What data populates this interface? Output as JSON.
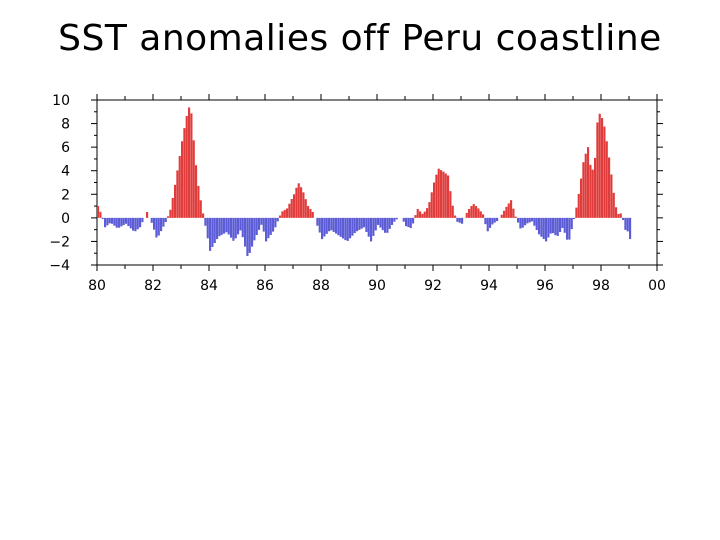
{
  "title": "SST anomalies off Peru coastline",
  "chart_data": {
    "type": "bar",
    "title": "",
    "xlabel": "",
    "ylabel": "",
    "xlim": [
      1980,
      2000
    ],
    "ylim": [
      -4,
      10
    ],
    "x_ticks": [
      {
        "value": 1980,
        "label": "80"
      },
      {
        "value": 1982,
        "label": "82"
      },
      {
        "value": 1984,
        "label": "84"
      },
      {
        "value": 1986,
        "label": "86"
      },
      {
        "value": 1988,
        "label": "88"
      },
      {
        "value": 1990,
        "label": "90"
      },
      {
        "value": 1992,
        "label": "92"
      },
      {
        "value": 1994,
        "label": "94"
      },
      {
        "value": 1996,
        "label": "96"
      },
      {
        "value": 1998,
        "label": "98"
      },
      {
        "value": 2000,
        "label": "00"
      }
    ],
    "y_ticks": [
      {
        "value": 10,
        "label": "10"
      },
      {
        "value": 8,
        "label": "8"
      },
      {
        "value": 6,
        "label": "6"
      },
      {
        "value": 4,
        "label": "4"
      },
      {
        "value": 2,
        "label": "2"
      },
      {
        "value": 0,
        "label": "0"
      },
      {
        "value": -2,
        "label": "−2"
      },
      {
        "value": -4,
        "label": "−4"
      }
    ],
    "positive_color": "#e03c3c",
    "negative_color": "#5c5cd6",
    "grid": false,
    "keyframes": [
      [
        1980.0,
        1.0
      ],
      [
        1980.12,
        0.3
      ],
      [
        1980.25,
        -0.8
      ],
      [
        1980.45,
        -0.4
      ],
      [
        1980.7,
        -0.9
      ],
      [
        1981.0,
        -0.5
      ],
      [
        1981.3,
        -1.2
      ],
      [
        1981.5,
        -0.8
      ],
      [
        1981.75,
        0.5
      ],
      [
        1981.95,
        -0.6
      ],
      [
        1982.1,
        -1.8
      ],
      [
        1982.3,
        -0.9
      ],
      [
        1982.45,
        -0.2
      ],
      [
        1982.6,
        0.8
      ],
      [
        1982.75,
        2.8
      ],
      [
        1982.9,
        5.0
      ],
      [
        1983.0,
        6.5
      ],
      [
        1983.15,
        8.5
      ],
      [
        1983.3,
        9.8
      ],
      [
        1983.4,
        7.0
      ],
      [
        1983.55,
        3.2
      ],
      [
        1983.7,
        1.0
      ],
      [
        1983.82,
        -0.5
      ],
      [
        1984.0,
        -2.8
      ],
      [
        1984.3,
        -1.6
      ],
      [
        1984.6,
        -1.2
      ],
      [
        1984.85,
        -2.0
      ],
      [
        1985.1,
        -1.0
      ],
      [
        1985.35,
        -3.4
      ],
      [
        1985.6,
        -1.8
      ],
      [
        1985.85,
        -0.5
      ],
      [
        1986.0,
        -2.0
      ],
      [
        1986.3,
        -1.0
      ],
      [
        1986.55,
        0.5
      ],
      [
        1986.75,
        0.8
      ],
      [
        1987.0,
        2.0
      ],
      [
        1987.15,
        3.0
      ],
      [
        1987.3,
        2.4
      ],
      [
        1987.5,
        1.0
      ],
      [
        1987.7,
        0.4
      ],
      [
        1987.85,
        -0.8
      ],
      [
        1988.0,
        -1.8
      ],
      [
        1988.3,
        -1.0
      ],
      [
        1988.6,
        -1.5
      ],
      [
        1988.9,
        -2.0
      ],
      [
        1989.2,
        -1.2
      ],
      [
        1989.5,
        -0.8
      ],
      [
        1989.75,
        -2.0
      ],
      [
        1990.0,
        -0.6
      ],
      [
        1990.3,
        -1.4
      ],
      [
        1990.55,
        -0.4
      ],
      [
        1990.8,
        0.2
      ],
      [
        1991.0,
        -0.7
      ],
      [
        1991.2,
        -0.9
      ],
      [
        1991.4,
        0.8
      ],
      [
        1991.6,
        0.3
      ],
      [
        1991.8,
        1.0
      ],
      [
        1992.0,
        3.0
      ],
      [
        1992.15,
        4.2
      ],
      [
        1992.35,
        3.9
      ],
      [
        1992.5,
        3.6
      ],
      [
        1992.65,
        1.2
      ],
      [
        1992.8,
        -0.3
      ],
      [
        1993.0,
        -0.5
      ],
      [
        1993.2,
        0.6
      ],
      [
        1993.4,
        1.2
      ],
      [
        1993.55,
        0.9
      ],
      [
        1993.75,
        0.3
      ],
      [
        1993.9,
        -1.2
      ],
      [
        1994.1,
        -0.5
      ],
      [
        1994.3,
        -0.2
      ],
      [
        1994.45,
        0.4
      ],
      [
        1994.6,
        1.0
      ],
      [
        1994.75,
        1.5
      ],
      [
        1994.9,
        0.2
      ],
      [
        1995.1,
        -1.0
      ],
      [
        1995.3,
        -0.5
      ],
      [
        1995.5,
        -0.3
      ],
      [
        1995.75,
        -1.4
      ],
      [
        1996.0,
        -2.0
      ],
      [
        1996.2,
        -1.2
      ],
      [
        1996.4,
        -1.6
      ],
      [
        1996.6,
        -0.8
      ],
      [
        1996.8,
        -2.2
      ],
      [
        1996.95,
        -0.6
      ],
      [
        1997.05,
        0.4
      ],
      [
        1997.2,
        2.5
      ],
      [
        1997.35,
        5.0
      ],
      [
        1997.5,
        6.0
      ],
      [
        1997.6,
        4.2
      ],
      [
        1997.72,
        4.0
      ],
      [
        1997.85,
        8.7
      ],
      [
        1997.95,
        8.9
      ],
      [
        1998.1,
        7.6
      ],
      [
        1998.3,
        4.3
      ],
      [
        1998.45,
        1.5
      ],
      [
        1998.55,
        0.3
      ],
      [
        1998.7,
        0.4
      ],
      [
        1998.82,
        -1.0
      ],
      [
        1998.95,
        -1.2
      ],
      [
        1999.0,
        -1.8
      ]
    ]
  }
}
